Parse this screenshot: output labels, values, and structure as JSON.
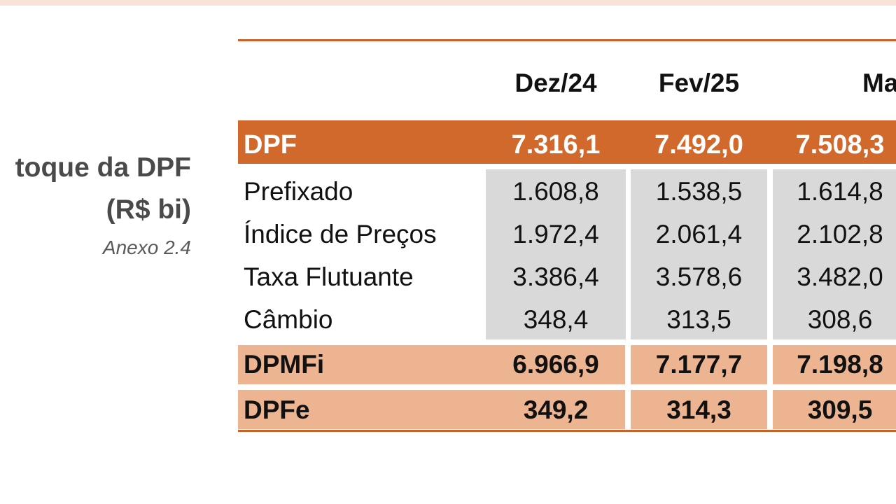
{
  "sidebar": {
    "title_line1": "toque da DPF",
    "title_line2": "(R$ bi)",
    "annex": "Anexo 2.4"
  },
  "table": {
    "columns": [
      "Dez/24",
      "Fev/25",
      "Ma"
    ],
    "dpf": {
      "label": "DPF",
      "values": [
        "7.316,1",
        "7.492,0",
        "7.508,3"
      ]
    },
    "composition": [
      {
        "label": "Prefixado",
        "values": [
          "1.608,8",
          "1.538,5",
          "1.614,8"
        ]
      },
      {
        "label": "Índice de Preços",
        "values": [
          "1.972,4",
          "2.061,4",
          "2.102,8"
        ]
      },
      {
        "label": "Taxa Flutuante",
        "values": [
          "3.386,4",
          "3.578,6",
          "3.482,0"
        ]
      },
      {
        "label": "Câmbio",
        "values": [
          "348,4",
          "313,5",
          "308,6"
        ]
      }
    ],
    "dpmfi": {
      "label": "DPMFi",
      "values": [
        "6.966,9",
        "7.177,7",
        "7.198,8"
      ]
    },
    "dpfe": {
      "label": "DPFe",
      "values": [
        "349,2",
        "314,3",
        "309,5"
      ]
    }
  },
  "colors": {
    "accent": "#d2692c",
    "accent_light": "#ecb491",
    "cell_grey": "#d9d9d9",
    "top_strip": "#f9e3d6"
  }
}
